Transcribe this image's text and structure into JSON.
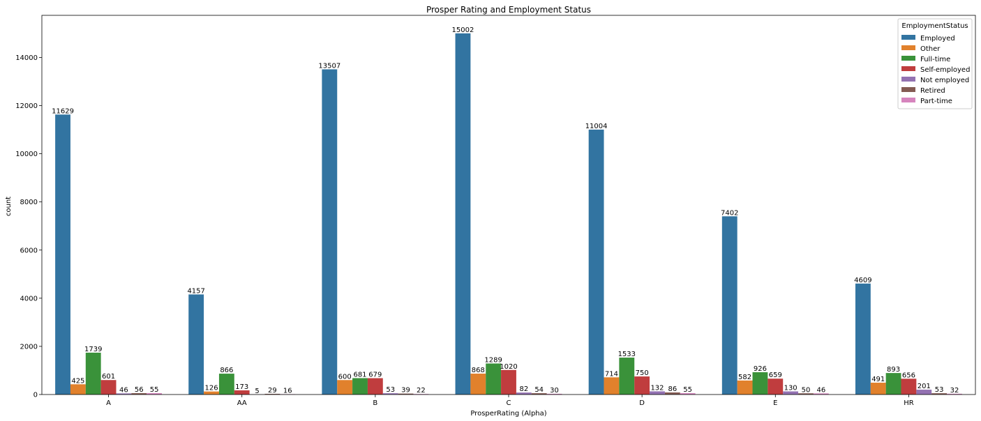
{
  "chart_data": {
    "type": "bar",
    "title": "Prosper Rating and Employment Status",
    "xlabel": "ProsperRating (Alpha)",
    "ylabel": "count",
    "categories": [
      "A",
      "AA",
      "B",
      "C",
      "D",
      "E",
      "HR"
    ],
    "ylim": [
      0,
      15750
    ],
    "yticks": [
      0,
      2000,
      4000,
      6000,
      8000,
      10000,
      12000,
      14000
    ],
    "grid": false,
    "legend": {
      "title": "EmploymentStatus",
      "placement": "top-right"
    },
    "series": [
      {
        "name": "Employed",
        "color": "#3274a1",
        "values": [
          11629,
          4157,
          13507,
          15002,
          11004,
          7402,
          4609
        ],
        "labels": [
          "11629",
          "4157",
          "13507",
          "15002",
          "11004",
          "7402",
          "4609"
        ]
      },
      {
        "name": "Other",
        "color": "#e1812c",
        "values": [
          425,
          126,
          600,
          868,
          714,
          582,
          491
        ],
        "labels": [
          "425",
          "126",
          "600",
          "868",
          "714",
          "582",
          "491"
        ]
      },
      {
        "name": "Full-time",
        "color": "#3a923a",
        "values": [
          1739,
          866,
          681,
          1289,
          1533,
          926,
          893
        ],
        "labels": [
          "1739",
          "866",
          "681",
          "1289",
          "1533",
          "926",
          "893"
        ]
      },
      {
        "name": "Self-employed",
        "color": "#c03d3e",
        "values": [
          601,
          173,
          679,
          1020,
          750,
          659,
          656
        ],
        "labels": [
          "601",
          "173",
          "679",
          "1020",
          "750",
          "659",
          "656"
        ]
      },
      {
        "name": "Not employed",
        "color": "#9372b2",
        "values": [
          46,
          5,
          53,
          82,
          132,
          130,
          201
        ],
        "labels": [
          "46",
          "5",
          "53",
          "82",
          "132",
          "130",
          "201"
        ]
      },
      {
        "name": "Retired",
        "color": "#845b53",
        "values": [
          56,
          29,
          39,
          54,
          86,
          50,
          53
        ],
        "labels": [
          "56",
          "29",
          "39",
          "54",
          "86",
          "50",
          "53"
        ]
      },
      {
        "name": "Part-time",
        "color": "#d684bd",
        "values": [
          55,
          16,
          22,
          30,
          55,
          46,
          32
        ],
        "labels": [
          "55",
          "16",
          "22",
          "30",
          "55",
          "46",
          "32"
        ]
      }
    ]
  }
}
